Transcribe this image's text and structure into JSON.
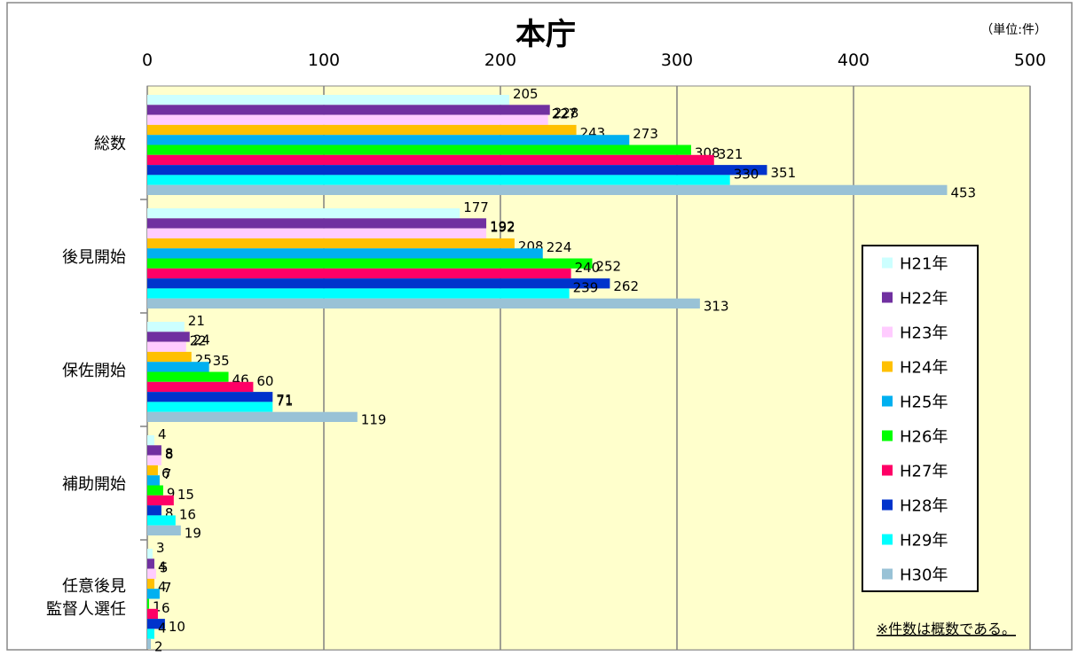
{
  "chart_data": {
    "type": "bar",
    "orientation": "horizontal",
    "title": "本庁",
    "unit_label": "（単位:件）",
    "note": "※件数は概数である。",
    "xlim": [
      0,
      500
    ],
    "xticks": [
      "0",
      "100",
      "200",
      "300",
      "400",
      "500"
    ],
    "categories": [
      [
        "総数"
      ],
      [
        "後見開始"
      ],
      [
        "保佐開始"
      ],
      [
        "補助開始"
      ],
      [
        "任意後見",
        "監督人選任"
      ]
    ],
    "series": [
      {
        "name": "H21年",
        "color": "#ccffff",
        "values": [
          205,
          177,
          21,
          4,
          3
        ]
      },
      {
        "name": "H22年",
        "color": "#7030a0",
        "values": [
          228,
          192,
          24,
          8,
          4
        ]
      },
      {
        "name": "H23年",
        "color": "#ffccff",
        "values": [
          227,
          192,
          22,
          8,
          5
        ]
      },
      {
        "name": "H24年",
        "color": "#ffc000",
        "values": [
          243,
          208,
          25,
          6,
          4
        ]
      },
      {
        "name": "H25年",
        "color": "#00b0f0",
        "values": [
          273,
          224,
          35,
          7,
          7
        ]
      },
      {
        "name": "H26年",
        "color": "#00ff00",
        "values": [
          308,
          252,
          46,
          9,
          1
        ]
      },
      {
        "name": "H27年",
        "color": "#ff0066",
        "values": [
          321,
          240,
          60,
          15,
          6
        ]
      },
      {
        "name": "H28年",
        "color": "#0033cc",
        "values": [
          351,
          262,
          71,
          8,
          10
        ]
      },
      {
        "name": "H29年",
        "color": "#00ffff",
        "values": [
          330,
          239,
          71,
          16,
          4
        ]
      },
      {
        "name": "H30年",
        "color": "#99c2d6",
        "values": [
          453,
          313,
          119,
          19,
          2
        ]
      }
    ],
    "plot_background": "#ffffcc",
    "grid": true,
    "legend_position": "right"
  }
}
